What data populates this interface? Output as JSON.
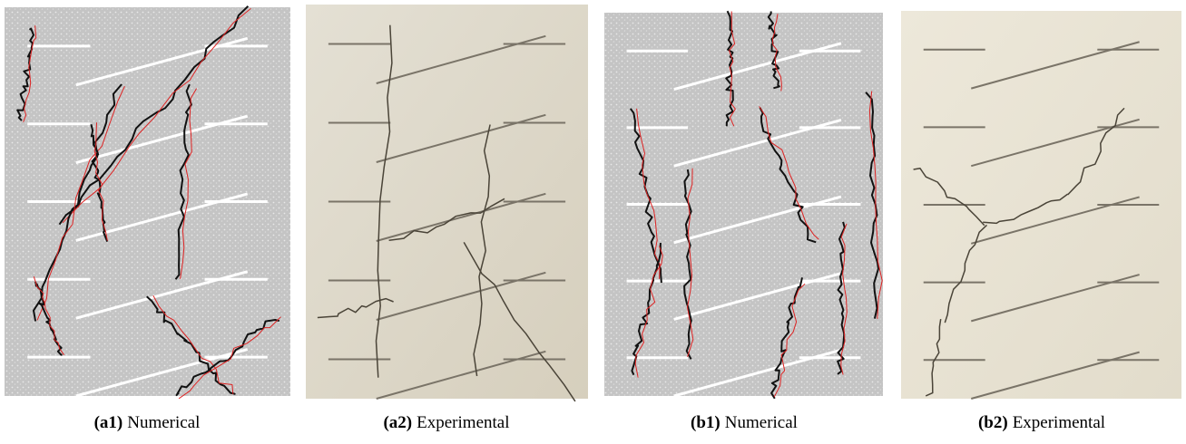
{
  "panels": [
    {
      "label": "(a1)",
      "caption": "Numerical"
    },
    {
      "label": "(a2)",
      "caption": "Experimental"
    },
    {
      "label": "(b1)",
      "caption": "Numerical"
    },
    {
      "label": "(b2)",
      "caption": "Experimental"
    }
  ]
}
